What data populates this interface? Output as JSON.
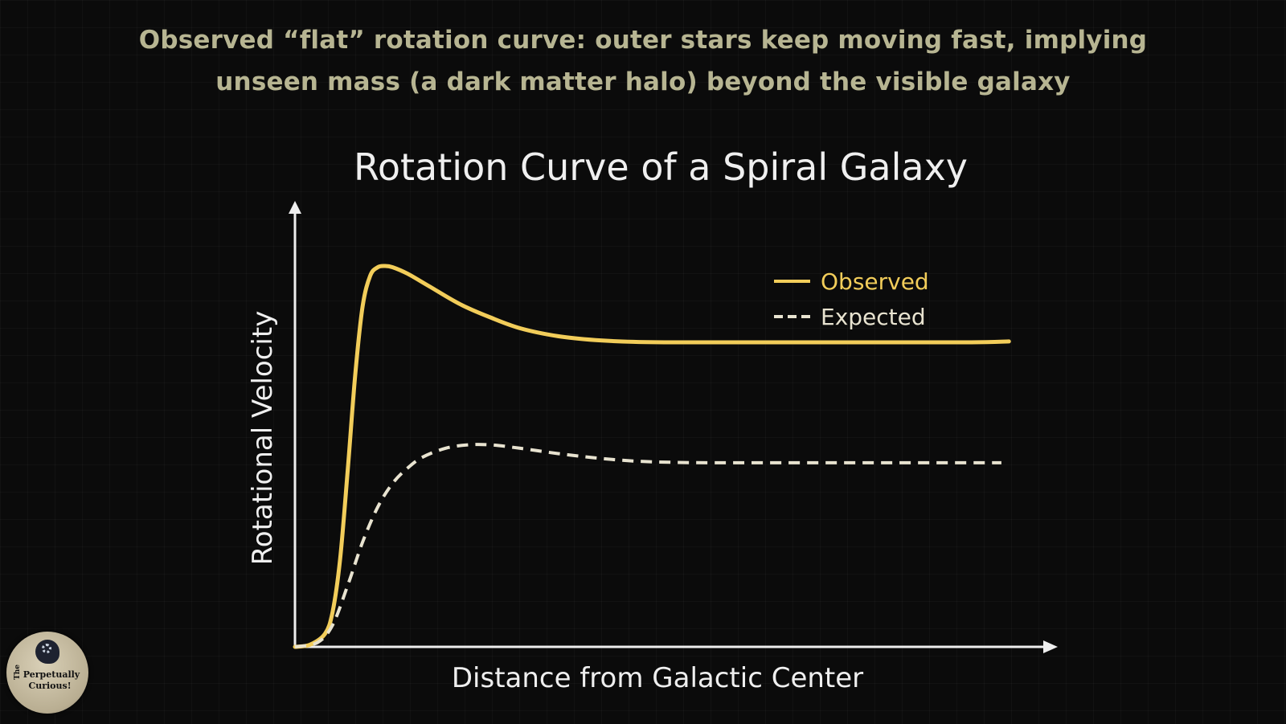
{
  "caption": {
    "line1": "Observed “flat” rotation curve: outer stars keep moving fast, implying",
    "line2": "unseen mass (a dark matter halo) beyond the visible galaxy",
    "color": "#b7b592"
  },
  "logo": {
    "prefix": "The",
    "line1": "Perpetually",
    "line2": "Curious!"
  },
  "colors": {
    "observed": "#f2cd5a",
    "expected": "#e8e3d0",
    "axis": "#eeeeee",
    "text": "#efefef"
  },
  "chart_data": {
    "type": "line",
    "title": "Rotation Curve of a Spiral Galaxy",
    "xlabel": "Distance from Galactic Center",
    "ylabel": "Rotational Velocity",
    "xlim": [
      0,
      100
    ],
    "ylim": [
      0,
      100
    ],
    "grid": false,
    "legend_position": "top-right",
    "series": [
      {
        "name": "Observed",
        "style": "solid",
        "color": "#f2cd5a",
        "x": [
          0,
          2,
          4,
          5,
          6,
          7,
          8,
          9,
          10,
          11,
          12,
          13,
          15,
          18,
          22,
          26,
          30,
          35,
          40,
          45,
          50,
          55,
          60,
          70,
          80,
          90,
          95
        ],
        "y": [
          0,
          0.5,
          3,
          8,
          20,
          40,
          62,
          78,
          85,
          87,
          87.3,
          87,
          85.5,
          82.5,
          78.5,
          75.5,
          73,
          71.2,
          70.3,
          69.9,
          69.8,
          69.8,
          69.8,
          69.8,
          69.8,
          69.8,
          70
        ]
      },
      {
        "name": "Expected",
        "style": "dashed",
        "color": "#e8e3d0",
        "x": [
          0,
          3,
          5,
          7,
          9,
          11,
          13,
          15,
          17,
          20,
          23,
          26,
          30,
          35,
          40,
          45,
          50,
          55,
          60,
          70,
          80,
          90,
          94
        ],
        "y": [
          0,
          1,
          5,
          14,
          24,
          32,
          37.5,
          41,
          43.5,
          45.5,
          46.3,
          46.3,
          45.5,
          44.3,
          43.3,
          42.6,
          42.3,
          42.2,
          42.2,
          42.2,
          42.2,
          42.2,
          42.2
        ]
      }
    ]
  }
}
